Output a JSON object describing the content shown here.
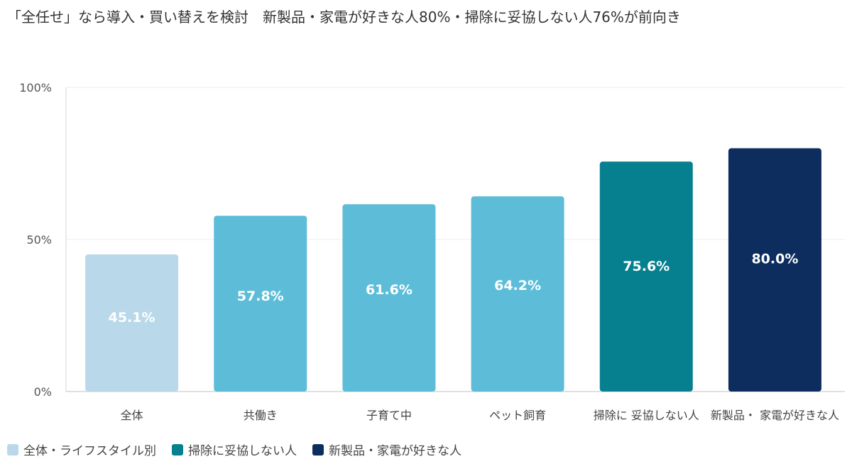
{
  "chart_data": {
    "type": "bar",
    "title": "「全任せ」なら導入・買い替えを検討　新製品・家電が好きな人80%・掃除に妥協しない人76%が前向き",
    "categories": [
      "全体",
      "共働き",
      "子育て中",
      "ペット飼育",
      "掃除に 妥協しない人",
      "新製品・ 家電が好きな人"
    ],
    "values": [
      45.1,
      57.8,
      61.6,
      64.2,
      75.6,
      80.0
    ],
    "value_labels": [
      "45.1%",
      "57.8%",
      "61.6%",
      "64.2%",
      "75.6%",
      "80.0%"
    ],
    "bar_colors": [
      "#b9d9ea",
      "#5dbdd8",
      "#5dbdd8",
      "#5dbdd8",
      "#06808f",
      "#0d2d5f"
    ],
    "ylim": [
      0,
      100
    ],
    "yticks": [
      0,
      50,
      100
    ],
    "ytick_labels": [
      "0%",
      "50%",
      "100%"
    ],
    "xlabel": "",
    "ylabel": "",
    "grid": true,
    "legend_position": "bottom-left",
    "legend": [
      {
        "label": "全体・ライフスタイル別",
        "color": "#b9d9ea"
      },
      {
        "label": "掃除に妥協しない人",
        "color": "#06808f"
      },
      {
        "label": "新製品・家電が好きな人",
        "color": "#0d2d5f"
      }
    ]
  }
}
